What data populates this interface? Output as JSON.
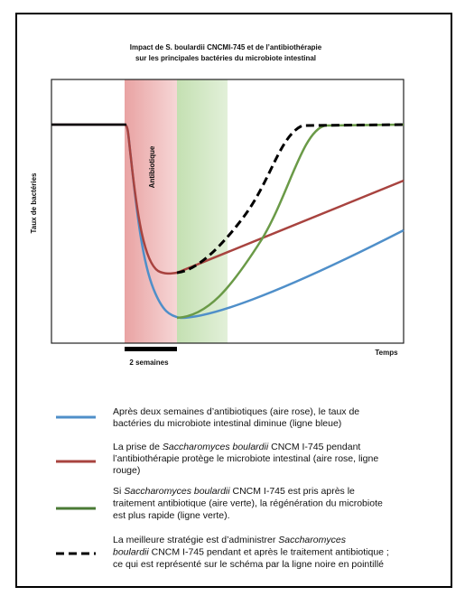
{
  "title": {
    "line1": "Impact de S. boulardii CNCMI-745 et de l’antibiothérapie",
    "line2": "sur les principales bactéries du microbiote intestinal"
  },
  "axes": {
    "y_label": "Taux de bactéries",
    "x_label": "Temps",
    "region_label": "Antibiotique",
    "scale_label": "2 semaines"
  },
  "legend": [
    {
      "lines": [
        [
          "Après deux semaines d’antibiotiques (aire rose), le taux de"
        ],
        [
          "bactéries du microbiote intestinal diminue (ligne bleue)"
        ]
      ]
    },
    {
      "lines": [
        [
          "La prise de ",
          "Saccharomyces boulardii",
          " CNCM I-745 pendant"
        ],
        [
          "l’antibiothérapie protège le microbiote intestinal (aire rose, ligne"
        ],
        [
          "rouge)"
        ]
      ]
    },
    {
      "lines": [
        [
          "Si ",
          "Saccharomyces boulardii",
          " CNCM I-745 est pris après le"
        ],
        [
          "traitement antibiotique (aire verte), la régénération du microbiote"
        ],
        [
          "est plus rapide (ligne verte)."
        ]
      ]
    },
    {
      "lines": [
        [
          "La meilleure stratégie est d’administrer ",
          "Saccharomyces"
        ],
        [
          "boulardii",
          " CNCM I-745 pendant et après le traitement antibiotique ;"
        ],
        [
          "ce qui est représenté sur le schéma par la ligne noire en pointillé"
        ]
      ]
    }
  ]
}
